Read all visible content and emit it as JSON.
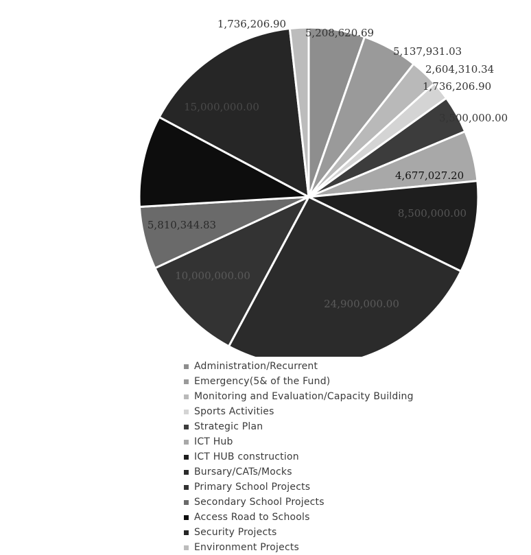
{
  "chart_data": {
    "type": "pie",
    "title": "",
    "legend_position": "bottom",
    "slices": [
      {
        "label": "Administration/Recurrent",
        "value": 5208620.69,
        "value_label": "5,208,620.69",
        "color": "#8e8e8e"
      },
      {
        "label": "Emergency(5& of the Fund)",
        "value": 5137931.03,
        "value_label": "5,137,931.03",
        "color": "#9a9a9a"
      },
      {
        "label": "Monitoring and Evaluation/Capacity Building",
        "value": 2604310.34,
        "value_label": "2,604,310.34",
        "color": "#b9b9b9"
      },
      {
        "label": "Sports Activities",
        "value": 1736206.9,
        "value_label": "1,736,206.90",
        "color": "#d4d4d4"
      },
      {
        "label": "Strategic Plan",
        "value": 3500000.0,
        "value_label": "3,500,000.00",
        "color": "#3c3c3c"
      },
      {
        "label": "ICT Hub",
        "value": 4677027.2,
        "value_label": "4,677,027.20",
        "color": "#a8a8a8"
      },
      {
        "label": "ICT HUB construction",
        "value": 8500000.0,
        "value_label": "8,500,000.00",
        "color": "#1e1e1e"
      },
      {
        "label": "Bursary/CATs/Mocks",
        "value": 24900000.0,
        "value_label": "24,900,000.00",
        "color": "#2b2b2b"
      },
      {
        "label": "Primary School Projects",
        "value": 10000000.0,
        "value_label": "10,000,000.00",
        "color": "#333333"
      },
      {
        "label": "Secondary School Projects",
        "value": 5810344.83,
        "value_label": "5,810,344.83",
        "color": "#6a6a6a"
      },
      {
        "label": "Access Road to Schools",
        "value": 8500000.0,
        "value_label": "",
        "color": "#0d0d0d"
      },
      {
        "label": "Security Projects",
        "value": 15000000.0,
        "value_label": "15,000,000.00",
        "color": "#262626"
      },
      {
        "label": "Environment Projects",
        "value": 1736206.9,
        "value_label": "1,736,206.90",
        "color": "#bcbcbc"
      }
    ]
  }
}
